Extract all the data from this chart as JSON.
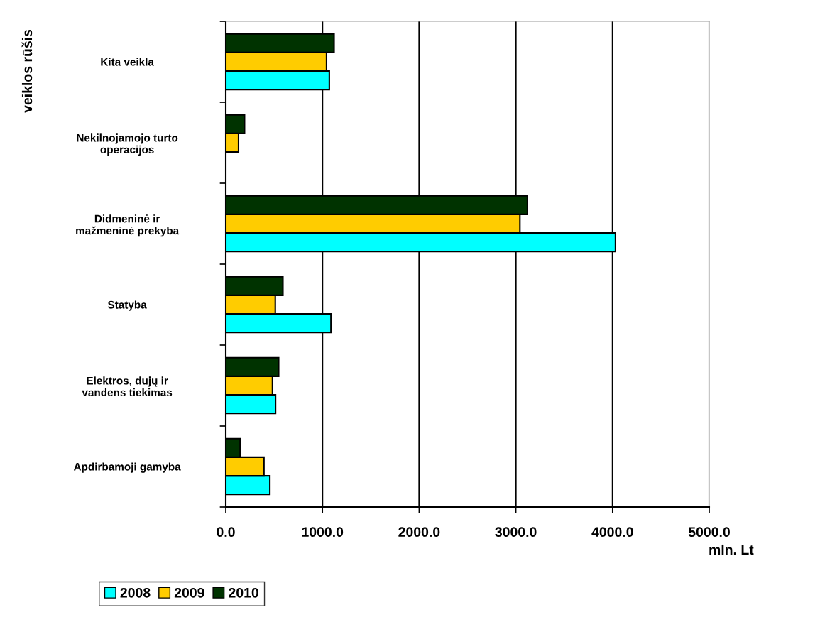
{
  "chart_data": {
    "type": "bar",
    "orientation": "horizontal",
    "categories": [
      "Kita veikla",
      "Nekilnojamojo turto\noperacijos",
      "Didmeninė ir\nmažmeninė prekyba",
      "Statyba",
      "Elektros, dujų ir\nvandens tiekimas",
      "Apdirbamoji gamyba"
    ],
    "series": [
      {
        "name": "2008",
        "color": "#00ffff",
        "values": [
          1071,
          null,
          4030,
          1088,
          515,
          456
        ]
      },
      {
        "name": "2009",
        "color": "#ffcc00",
        "values": [
          1042,
          132,
          3042,
          512,
          483,
          395
        ]
      },
      {
        "name": "2010",
        "color": "#003300",
        "values": [
          1120,
          194,
          3120,
          591,
          547,
          149
        ]
      }
    ],
    "xlim": [
      0,
      5000
    ],
    "xticks": [
      {
        "value": 0,
        "label": "0.0"
      },
      {
        "value": 1000,
        "label": "1000.0"
      },
      {
        "value": 2000,
        "label": "2000.0"
      },
      {
        "value": 3000,
        "label": "3000.0"
      },
      {
        "value": 4000,
        "label": "4000.0"
      },
      {
        "value": 5000,
        "label": "5000.0"
      }
    ],
    "xlabel": "mln. Lt",
    "ylabel": "veiklos rūšis",
    "grid": "x",
    "legend": "bottom left"
  }
}
